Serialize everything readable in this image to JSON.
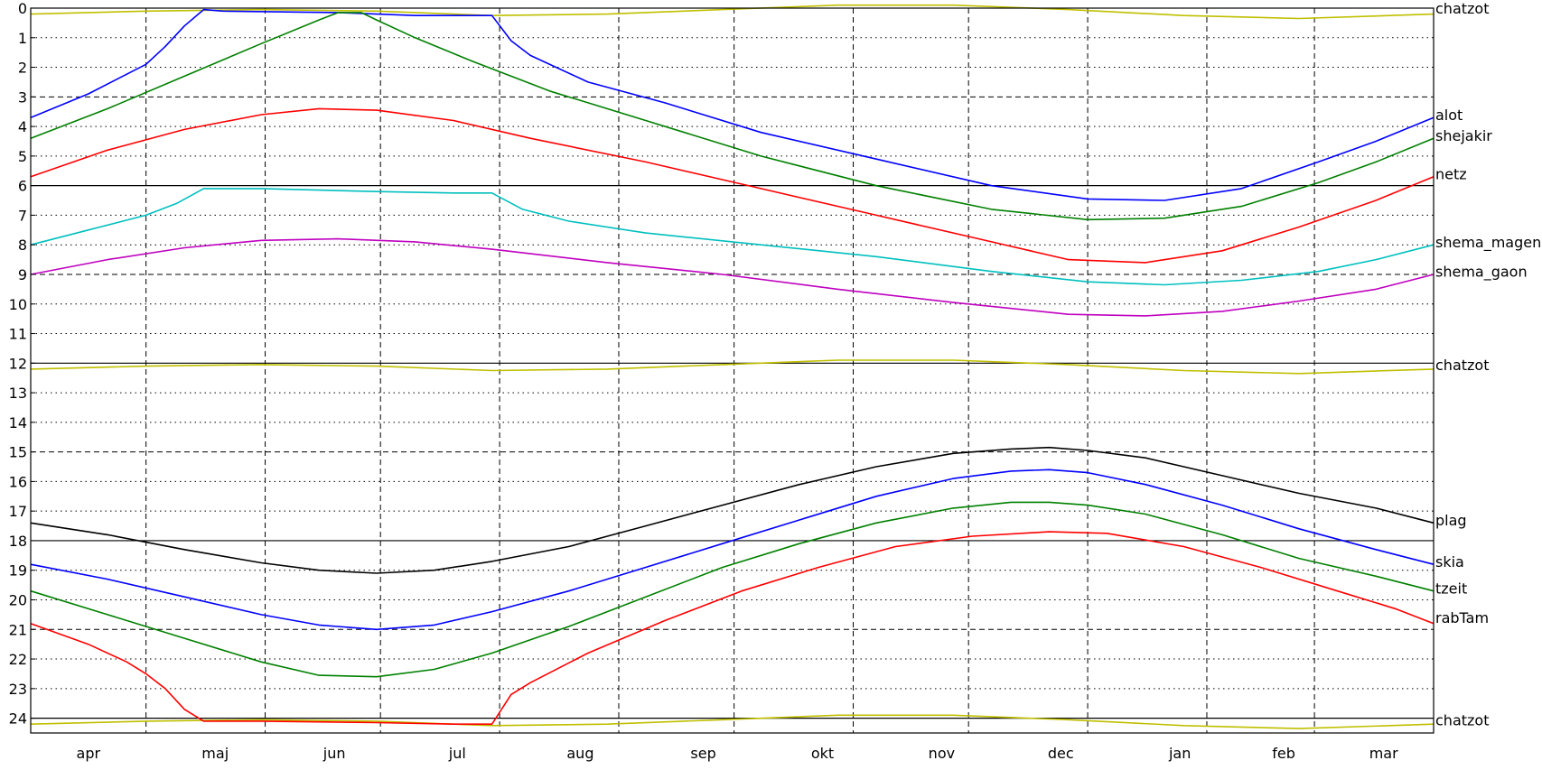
{
  "chart_data": {
    "type": "line",
    "title": "",
    "xlabel": "",
    "ylabel": "",
    "ylim": [
      0,
      24.5
    ],
    "y_inverted": true,
    "yticks": [
      0,
      1,
      2,
      3,
      4,
      5,
      6,
      7,
      8,
      9,
      10,
      11,
      12,
      13,
      14,
      15,
      16,
      17,
      18,
      19,
      20,
      21,
      22,
      23,
      24
    ],
    "xlim": [
      0,
      365
    ],
    "month_labels": [
      {
        "label": "apr",
        "x": 15
      },
      {
        "label": "maj",
        "x": 48
      },
      {
        "label": "jun",
        "x": 79
      },
      {
        "label": "jul",
        "x": 111
      },
      {
        "label": "aug",
        "x": 143
      },
      {
        "label": "sep",
        "x": 175
      },
      {
        "label": "okt",
        "x": 206
      },
      {
        "label": "nov",
        "x": 237
      },
      {
        "label": "dec",
        "x": 268
      },
      {
        "label": "jan",
        "x": 299
      },
      {
        "label": "feb",
        "x": 326
      },
      {
        "label": "mar",
        "x": 352
      }
    ],
    "month_boundaries": [
      30,
      61,
      91,
      122,
      153,
      183,
      214,
      244,
      275,
      306,
      334
    ],
    "grid": {
      "dashed_hours": [
        3,
        9,
        15,
        21
      ],
      "solid_hours": [
        6,
        12,
        18,
        24
      ],
      "dotted_hours": "others"
    },
    "legend": "none (series labels at right edge)",
    "series": [
      {
        "name": "chatzot",
        "color": "#bfbf00",
        "points": [
          [
            0,
            0.2
          ],
          [
            30,
            0.1
          ],
          [
            60,
            0.05
          ],
          [
            90,
            0.1
          ],
          [
            120,
            0.25
          ],
          [
            150,
            0.2
          ],
          [
            180,
            0.05
          ],
          [
            210,
            -0.1
          ],
          [
            240,
            -0.1
          ],
          [
            270,
            0.05
          ],
          [
            300,
            0.25
          ],
          [
            330,
            0.35
          ],
          [
            365,
            0.2
          ]
        ]
      },
      {
        "name": "chatzot",
        "color": "#bfbf00",
        "points": [
          [
            0,
            12.2
          ],
          [
            30,
            12.1
          ],
          [
            60,
            12.05
          ],
          [
            90,
            12.1
          ],
          [
            120,
            12.25
          ],
          [
            150,
            12.2
          ],
          [
            180,
            12.05
          ],
          [
            210,
            11.9
          ],
          [
            240,
            11.9
          ],
          [
            270,
            12.05
          ],
          [
            300,
            12.25
          ],
          [
            330,
            12.35
          ],
          [
            365,
            12.2
          ]
        ]
      },
      {
        "name": "chatzot",
        "color": "#bfbf00",
        "points": [
          [
            0,
            24.2
          ],
          [
            30,
            24.1
          ],
          [
            60,
            24.05
          ],
          [
            90,
            24.1
          ],
          [
            120,
            24.25
          ],
          [
            150,
            24.2
          ],
          [
            180,
            24.05
          ],
          [
            210,
            23.9
          ],
          [
            240,
            23.9
          ],
          [
            270,
            24.05
          ],
          [
            300,
            24.25
          ],
          [
            330,
            24.35
          ],
          [
            365,
            24.2
          ]
        ]
      },
      {
        "name": "alot",
        "color": "#0000ff",
        "points": [
          [
            0,
            3.7
          ],
          [
            15,
            2.9
          ],
          [
            30,
            1.9
          ],
          [
            35,
            1.3
          ],
          [
            40,
            0.6
          ],
          [
            45,
            0.05
          ],
          [
            50,
            0.1
          ],
          [
            80,
            0.15
          ],
          [
            100,
            0.25
          ],
          [
            120,
            0.25
          ],
          [
            125,
            1.1
          ],
          [
            130,
            1.6
          ],
          [
            145,
            2.5
          ],
          [
            165,
            3.2
          ],
          [
            190,
            4.2
          ],
          [
            220,
            5.1
          ],
          [
            250,
            6
          ],
          [
            275,
            6.45
          ],
          [
            295,
            6.5
          ],
          [
            315,
            6.1
          ],
          [
            335,
            5.2
          ],
          [
            350,
            4.5
          ],
          [
            365,
            3.7
          ]
        ]
      },
      {
        "name": "shejakir",
        "color": "#008000",
        "points": [
          [
            0,
            4.4
          ],
          [
            20,
            3.4
          ],
          [
            40,
            2.3
          ],
          [
            60,
            1.2
          ],
          [
            75,
            0.4
          ],
          [
            80,
            0.15
          ],
          [
            86,
            0.15
          ],
          [
            90,
            0.4
          ],
          [
            100,
            1
          ],
          [
            115,
            1.8
          ],
          [
            135,
            2.8
          ],
          [
            160,
            3.8
          ],
          [
            190,
            5
          ],
          [
            220,
            6
          ],
          [
            250,
            6.8
          ],
          [
            275,
            7.15
          ],
          [
            295,
            7.1
          ],
          [
            315,
            6.7
          ],
          [
            335,
            5.9
          ],
          [
            350,
            5.2
          ],
          [
            365,
            4.4
          ]
        ]
      },
      {
        "name": "netz",
        "color": "#ff0000",
        "points": [
          [
            0,
            5.7
          ],
          [
            20,
            4.8
          ],
          [
            40,
            4.1
          ],
          [
            60,
            3.6
          ],
          [
            75,
            3.4
          ],
          [
            90,
            3.45
          ],
          [
            110,
            3.8
          ],
          [
            130,
            4.4
          ],
          [
            160,
            5.2
          ],
          [
            190,
            6.1
          ],
          [
            220,
            7
          ],
          [
            250,
            7.9
          ],
          [
            270,
            8.5
          ],
          [
            290,
            8.6
          ],
          [
            310,
            8.2
          ],
          [
            330,
            7.4
          ],
          [
            350,
            6.5
          ],
          [
            365,
            5.7
          ]
        ]
      },
      {
        "name": "shema_magen",
        "color": "#00bfbf",
        "points": [
          [
            0,
            8
          ],
          [
            15,
            7.5
          ],
          [
            30,
            7
          ],
          [
            38,
            6.6
          ],
          [
            45,
            6.1
          ],
          [
            60,
            6.1
          ],
          [
            90,
            6.2
          ],
          [
            110,
            6.25
          ],
          [
            120,
            6.25
          ],
          [
            128,
            6.8
          ],
          [
            140,
            7.2
          ],
          [
            160,
            7.6
          ],
          [
            190,
            8
          ],
          [
            220,
            8.4
          ],
          [
            250,
            8.9
          ],
          [
            275,
            9.25
          ],
          [
            295,
            9.35
          ],
          [
            315,
            9.2
          ],
          [
            335,
            8.9
          ],
          [
            350,
            8.5
          ],
          [
            365,
            8
          ]
        ]
      },
      {
        "name": "shema_gaon",
        "color": "#bf00bf",
        "points": [
          [
            0,
            9
          ],
          [
            20,
            8.5
          ],
          [
            40,
            8.1
          ],
          [
            60,
            7.85
          ],
          [
            80,
            7.8
          ],
          [
            100,
            7.9
          ],
          [
            120,
            8.15
          ],
          [
            150,
            8.6
          ],
          [
            180,
            9
          ],
          [
            210,
            9.5
          ],
          [
            240,
            9.95
          ],
          [
            270,
            10.35
          ],
          [
            290,
            10.4
          ],
          [
            310,
            10.25
          ],
          [
            330,
            9.9
          ],
          [
            350,
            9.5
          ],
          [
            365,
            9
          ]
        ]
      },
      {
        "name": "plag",
        "color": "#000000",
        "points": [
          [
            0,
            17.4
          ],
          [
            20,
            17.8
          ],
          [
            40,
            18.3
          ],
          [
            60,
            18.75
          ],
          [
            75,
            19
          ],
          [
            90,
            19.1
          ],
          [
            105,
            19
          ],
          [
            120,
            18.7
          ],
          [
            140,
            18.2
          ],
          [
            160,
            17.5
          ],
          [
            180,
            16.8
          ],
          [
            200,
            16.1
          ],
          [
            220,
            15.5
          ],
          [
            240,
            15.05
          ],
          [
            255,
            14.9
          ],
          [
            265,
            14.85
          ],
          [
            275,
            14.95
          ],
          [
            290,
            15.2
          ],
          [
            310,
            15.8
          ],
          [
            330,
            16.4
          ],
          [
            350,
            16.9
          ],
          [
            365,
            17.4
          ]
        ]
      },
      {
        "name": "skia",
        "color": "#0000ff",
        "points": [
          [
            0,
            18.8
          ],
          [
            20,
            19.3
          ],
          [
            40,
            19.9
          ],
          [
            60,
            20.5
          ],
          [
            75,
            20.85
          ],
          [
            90,
            21
          ],
          [
            105,
            20.85
          ],
          [
            120,
            20.4
          ],
          [
            140,
            19.7
          ],
          [
            160,
            18.9
          ],
          [
            180,
            18.1
          ],
          [
            200,
            17.3
          ],
          [
            220,
            16.5
          ],
          [
            240,
            15.9
          ],
          [
            255,
            15.65
          ],
          [
            265,
            15.6
          ],
          [
            275,
            15.7
          ],
          [
            290,
            16.1
          ],
          [
            310,
            16.8
          ],
          [
            330,
            17.6
          ],
          [
            350,
            18.3
          ],
          [
            365,
            18.8
          ]
        ]
      },
      {
        "name": "tzeit",
        "color": "#008000",
        "points": [
          [
            0,
            19.7
          ],
          [
            20,
            20.5
          ],
          [
            40,
            21.3
          ],
          [
            60,
            22.1
          ],
          [
            75,
            22.55
          ],
          [
            90,
            22.6
          ],
          [
            105,
            22.35
          ],
          [
            120,
            21.8
          ],
          [
            140,
            20.9
          ],
          [
            160,
            19.9
          ],
          [
            180,
            18.9
          ],
          [
            200,
            18.1
          ],
          [
            220,
            17.4
          ],
          [
            240,
            16.9
          ],
          [
            255,
            16.7
          ],
          [
            265,
            16.7
          ],
          [
            275,
            16.8
          ],
          [
            290,
            17.1
          ],
          [
            310,
            17.8
          ],
          [
            330,
            18.6
          ],
          [
            350,
            19.2
          ],
          [
            365,
            19.7
          ]
        ]
      },
      {
        "name": "rabTam",
        "color": "#ff0000",
        "points": [
          [
            0,
            20.8
          ],
          [
            15,
            21.5
          ],
          [
            25,
            22.1
          ],
          [
            30,
            22.5
          ],
          [
            35,
            23
          ],
          [
            40,
            23.7
          ],
          [
            45,
            24.1
          ],
          [
            60,
            24.1
          ],
          [
            90,
            24.15
          ],
          [
            110,
            24.2
          ],
          [
            120,
            24.2
          ],
          [
            125,
            23.2
          ],
          [
            130,
            22.8
          ],
          [
            145,
            21.8
          ],
          [
            165,
            20.7
          ],
          [
            185,
            19.7
          ],
          [
            205,
            18.9
          ],
          [
            225,
            18.2
          ],
          [
            245,
            17.85
          ],
          [
            265,
            17.7
          ],
          [
            280,
            17.75
          ],
          [
            300,
            18.2
          ],
          [
            320,
            18.9
          ],
          [
            340,
            19.7
          ],
          [
            355,
            20.3
          ],
          [
            365,
            20.8
          ]
        ]
      }
    ],
    "right_labels": [
      {
        "label": "chatzot",
        "y": 0
      },
      {
        "label": "alot",
        "y": 3.6
      },
      {
        "label": "shejakir",
        "y": 4.3
      },
      {
        "label": "netz",
        "y": 5.6
      },
      {
        "label": "shema_magen",
        "y": 7.9
      },
      {
        "label": "shema_gaon",
        "y": 8.9
      },
      {
        "label": "chatzot",
        "y": 12.05
      },
      {
        "label": "plag",
        "y": 17.3
      },
      {
        "label": "skia",
        "y": 18.7
      },
      {
        "label": "tzeit",
        "y": 19.6
      },
      {
        "label": "rabTam",
        "y": 20.6
      },
      {
        "label": "chatzot",
        "y": 24.05
      }
    ]
  }
}
